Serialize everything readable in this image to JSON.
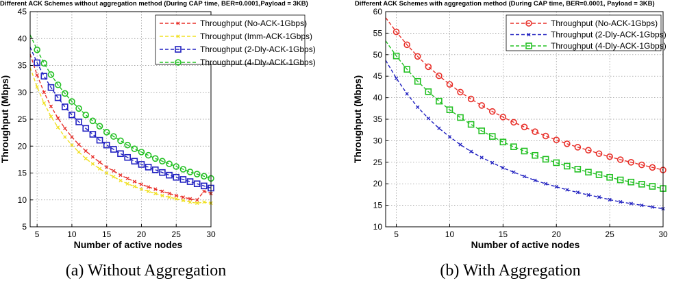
{
  "chart_data": [
    {
      "type": "line",
      "title": "Different ACK Schemes without aggregation method (During CAP time, BER=0.0001,Payload = 3KB)",
      "xlabel": "Number of active nodes",
      "ylabel": "Throughput (Mbps)",
      "caption": "(a) Without Aggregation",
      "xlim": [
        4,
        30
      ],
      "ylim": [
        5,
        45
      ],
      "xticks": [
        5,
        10,
        15,
        20,
        25,
        30
      ],
      "yticks": [
        5,
        10,
        15,
        20,
        25,
        30,
        35,
        40,
        45
      ],
      "grid": true,
      "legend_position": "top-right",
      "x": [
        4,
        5,
        6,
        7,
        8,
        9,
        10,
        11,
        12,
        13,
        14,
        15,
        16,
        17,
        18,
        19,
        20,
        21,
        22,
        23,
        24,
        25,
        26,
        27,
        28,
        29,
        30
      ],
      "series": [
        {
          "name": "Throughput (No-ACK-1Gbps)",
          "color": "#e8302a",
          "marker": "x",
          "line": "dashed",
          "values": [
            37.1,
            33.2,
            30.0,
            27.4,
            25.2,
            23.3,
            21.7,
            20.3,
            19.1,
            18.0,
            17.0,
            16.1,
            15.4,
            14.6,
            14.0,
            13.4,
            12.9,
            12.4,
            12.0,
            11.6,
            11.2,
            10.8,
            10.5,
            10.2,
            10.0,
            11.6,
            11.2
          ]
        },
        {
          "name": "Throughput (Imm-ACK-1Gbps)",
          "color": "#f0e022",
          "marker": "x",
          "line": "dashed",
          "values": [
            34.6,
            31.0,
            28.0,
            25.5,
            23.5,
            21.7,
            20.2,
            18.9,
            17.7,
            16.7,
            15.8,
            15.0,
            14.3,
            13.6,
            13.0,
            12.5,
            12.0,
            11.6,
            11.2,
            10.8,
            10.5,
            10.2,
            9.9,
            9.6,
            9.4,
            9.6,
            9.4
          ]
        },
        {
          "name": "Throughput (2-Dly-ACK-1Gbps)",
          "color": "#2020c0",
          "marker": "square",
          "line": "dashed",
          "values": [
            38.4,
            35.5,
            33.0,
            30.9,
            29.0,
            27.3,
            25.8,
            24.5,
            23.3,
            22.2,
            21.1,
            20.2,
            19.4,
            18.6,
            17.9,
            17.2,
            16.6,
            16.1,
            15.6,
            15.1,
            14.6,
            14.2,
            13.8,
            13.4,
            13.0,
            12.6,
            12.2
          ]
        },
        {
          "name": "Throughput (4-Dly-ACK-1Gbps)",
          "color": "#22c022",
          "marker": "circle",
          "line": "dashed",
          "values": [
            40.7,
            37.9,
            35.4,
            33.3,
            31.4,
            29.8,
            28.3,
            27.0,
            25.8,
            24.7,
            23.7,
            22.6,
            21.8,
            21.0,
            20.2,
            19.5,
            18.9,
            18.3,
            17.7,
            17.2,
            16.7,
            16.2,
            15.7,
            15.2,
            14.8,
            14.4,
            14.0
          ]
        }
      ]
    },
    {
      "type": "line",
      "title": "Different ACK Schemes with aggregation method (During CAP time, BER=0.0001, Payload = 3KB)",
      "xlabel": "Number of active nodes",
      "ylabel": "Throughput (Mbps)",
      "caption": "(b) With Aggregation",
      "xlim": [
        4,
        30
      ],
      "ylim": [
        10,
        60
      ],
      "xticks": [
        5,
        10,
        15,
        20,
        25,
        30
      ],
      "yticks": [
        10,
        15,
        20,
        25,
        30,
        35,
        40,
        45,
        50,
        55,
        60
      ],
      "grid": true,
      "legend_position": "top-right",
      "x": [
        4,
        5,
        6,
        7,
        8,
        9,
        10,
        11,
        12,
        13,
        14,
        15,
        16,
        17,
        18,
        19,
        20,
        21,
        22,
        23,
        24,
        25,
        26,
        27,
        28,
        29,
        30
      ],
      "series": [
        {
          "name": "Throughput (No-ACK-1Gbps)",
          "color": "#e8302a",
          "marker": "circle",
          "line": "dashed",
          "values": [
            58.6,
            55.3,
            52.3,
            49.6,
            47.2,
            45.1,
            43.1,
            41.3,
            39.7,
            38.2,
            36.8,
            35.5,
            34.3,
            33.2,
            32.1,
            31.1,
            30.2,
            29.3,
            28.5,
            27.8,
            27.0,
            26.3,
            25.6,
            25.0,
            24.4,
            23.8,
            23.2
          ]
        },
        {
          "name": "Throughput (2-Dly-ACK-1Gbps)",
          "color": "#2020c0",
          "marker": "x",
          "line": "dashed",
          "values": [
            48.7,
            44.5,
            40.9,
            37.8,
            35.2,
            32.9,
            30.9,
            29.1,
            27.5,
            26.1,
            24.9,
            23.7,
            22.7,
            21.7,
            20.8,
            20.0,
            19.3,
            18.6,
            18.0,
            17.4,
            16.9,
            16.3,
            15.8,
            15.4,
            15.0,
            14.6,
            14.2
          ]
        },
        {
          "name": "Throughput (4-Dly-ACK-1Gbps)",
          "color": "#22c022",
          "marker": "square",
          "line": "dashed",
          "values": [
            53.2,
            49.7,
            46.6,
            43.8,
            41.4,
            39.2,
            37.2,
            35.4,
            33.8,
            32.3,
            31.0,
            29.7,
            28.6,
            27.6,
            26.6,
            25.7,
            24.9,
            24.1,
            23.4,
            22.7,
            22.1,
            21.5,
            20.9,
            20.4,
            19.9,
            19.4,
            18.9
          ]
        }
      ]
    }
  ]
}
